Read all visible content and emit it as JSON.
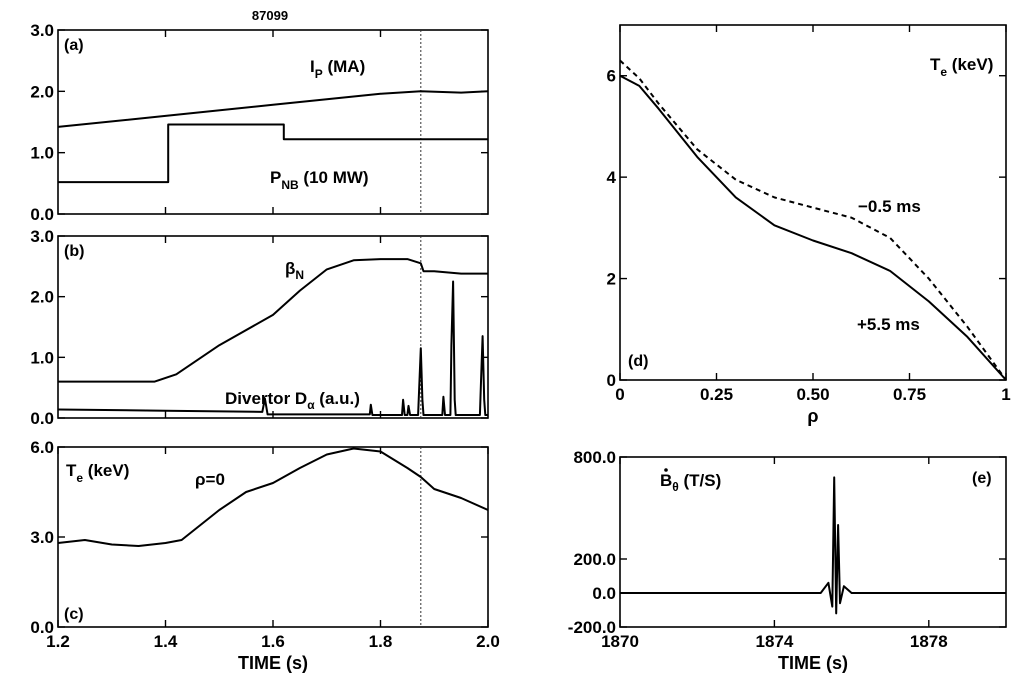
{
  "shot_number": "87099",
  "chart_data": [
    {
      "panel": "(a)",
      "type": "line",
      "ylim": [
        0,
        3.0
      ],
      "xlim": [
        1.2,
        2.0
      ],
      "yticks": [
        "0.0",
        "1.0",
        "2.0",
        "3.0"
      ],
      "marker_time": 1.875,
      "annotations": [
        {
          "main": "I",
          "sub": "P",
          "rest": " (MA)"
        },
        {
          "main": "P",
          "sub": "NB",
          "rest": " (10 MW)"
        }
      ],
      "series": [
        {
          "x": [
            1.2,
            1.4,
            1.6,
            1.8,
            1.875,
            1.95,
            2.0
          ],
          "y": [
            1.42,
            1.6,
            1.78,
            1.96,
            2.0,
            1.98,
            2.0
          ]
        },
        {
          "x": [
            1.2,
            1.405,
            1.405,
            1.62,
            1.62,
            2.0
          ],
          "y": [
            0.52,
            0.52,
            1.46,
            1.46,
            1.22,
            1.22
          ],
          "step": true
        }
      ]
    },
    {
      "panel": "(b)",
      "type": "line",
      "ylim": [
        0,
        3.0
      ],
      "xlim": [
        1.2,
        2.0
      ],
      "yticks": [
        "0.0",
        "1.0",
        "2.0",
        "3.0"
      ],
      "marker_time": 1.875,
      "annotations": [
        {
          "main": "β",
          "sub": "N",
          "rest": ""
        },
        {
          "main": "Divertor D",
          "sub": "α",
          "rest": " (a.u.)"
        }
      ],
      "series": [
        {
          "x": [
            1.2,
            1.38,
            1.42,
            1.5,
            1.6,
            1.65,
            1.7,
            1.75,
            1.8,
            1.85,
            1.875,
            1.88,
            1.9,
            1.95,
            2.0
          ],
          "y": [
            0.6,
            0.6,
            0.72,
            1.2,
            1.7,
            2.1,
            2.45,
            2.6,
            2.62,
            2.62,
            2.55,
            2.42,
            2.42,
            2.38,
            2.38
          ]
        },
        {
          "x": [
            1.2,
            1.4,
            1.58,
            1.585,
            1.59,
            1.78,
            1.782,
            1.785,
            1.84,
            1.842,
            1.845,
            1.85,
            1.852,
            1.855,
            1.87,
            1.872,
            1.875,
            1.878,
            1.88,
            1.915,
            1.917,
            1.92,
            1.93,
            1.932,
            1.935,
            1.938,
            1.94,
            1.985,
            1.987,
            1.99,
            1.993,
            1.995,
            2.0
          ],
          "y": [
            0.14,
            0.12,
            0.1,
            0.32,
            0.06,
            0.06,
            0.22,
            0.05,
            0.05,
            0.3,
            0.05,
            0.05,
            0.2,
            0.05,
            0.05,
            0.5,
            1.15,
            0.3,
            0.05,
            0.05,
            0.35,
            0.05,
            0.05,
            1.2,
            2.25,
            0.3,
            0.05,
            0.05,
            0.6,
            1.35,
            0.3,
            0.05,
            0.05
          ]
        }
      ]
    },
    {
      "panel": "(c)",
      "type": "line",
      "ylim": [
        0,
        6.0
      ],
      "xlim": [
        1.2,
        2.0
      ],
      "yticks": [
        "0.0",
        "3.0",
        "6.0"
      ],
      "xticks": [
        "1.2",
        "1.4",
        "1.6",
        "1.8",
        "2.0"
      ],
      "xlabel": "TIME (s)",
      "marker_time": 1.875,
      "annotations": [
        {
          "main": "T",
          "sub": "e",
          "rest": " (keV)"
        },
        {
          "main": "ρ=0",
          "sub": "",
          "rest": ""
        }
      ],
      "series": [
        {
          "x": [
            1.2,
            1.25,
            1.3,
            1.35,
            1.4,
            1.43,
            1.5,
            1.55,
            1.6,
            1.65,
            1.7,
            1.75,
            1.8,
            1.85,
            1.875,
            1.9,
            1.95,
            2.0
          ],
          "y": [
            2.8,
            2.9,
            2.75,
            2.7,
            2.8,
            2.9,
            3.9,
            4.5,
            4.8,
            5.3,
            5.75,
            5.95,
            5.85,
            5.3,
            5.0,
            4.6,
            4.3,
            3.9
          ]
        }
      ]
    },
    {
      "panel": "(d)",
      "type": "line",
      "xlim": [
        0,
        1
      ],
      "ylim": [
        0,
        7
      ],
      "xticks": [
        "0",
        "0.25",
        "0.50",
        "0.75",
        "1"
      ],
      "yticks": [
        "0",
        "2",
        "4",
        "6"
      ],
      "xlabel": "ρ",
      "annotations": [
        {
          "main": "T",
          "sub": "e",
          "rest": " (keV)"
        },
        {
          "main": "−0.5 ms",
          "sub": "",
          "rest": ""
        },
        {
          "main": "+5.5 ms",
          "sub": "",
          "rest": ""
        }
      ],
      "series": [
        {
          "x": [
            0,
            0.05,
            0.1,
            0.2,
            0.3,
            0.4,
            0.5,
            0.6,
            0.7,
            0.8,
            0.9,
            1.0
          ],
          "y": [
            6.0,
            5.8,
            5.35,
            4.4,
            3.6,
            3.05,
            2.75,
            2.5,
            2.15,
            1.55,
            0.85,
            0.0
          ]
        },
        {
          "x": [
            0,
            0.05,
            0.1,
            0.2,
            0.3,
            0.4,
            0.5,
            0.6,
            0.7,
            0.8,
            0.9,
            1.0
          ],
          "y": [
            6.3,
            5.95,
            5.45,
            4.55,
            3.95,
            3.6,
            3.4,
            3.2,
            2.8,
            2.0,
            1.05,
            0.0
          ],
          "dashed": true
        }
      ]
    },
    {
      "panel": "(e)",
      "type": "line",
      "xlim": [
        1870,
        1880
      ],
      "ylim": [
        -200,
        800
      ],
      "xticks": [
        "1870",
        "1874",
        "1878"
      ],
      "yticks": [
        "-200.0",
        "0.0",
        "200.0",
        "800.0"
      ],
      "xlabel": "TIME (s)",
      "annotations": [
        {
          "main": "B",
          "sub": "θ",
          "rest": " (T/S)",
          "dot": true
        }
      ],
      "series": [
        {
          "x": [
            1870,
            1875.2,
            1875.4,
            1875.5,
            1875.55,
            1875.6,
            1875.65,
            1875.7,
            1875.8,
            1876.0,
            1880
          ],
          "y": [
            0,
            0,
            60,
            -80,
            680,
            -120,
            400,
            -60,
            40,
            0,
            0
          ]
        }
      ]
    }
  ]
}
